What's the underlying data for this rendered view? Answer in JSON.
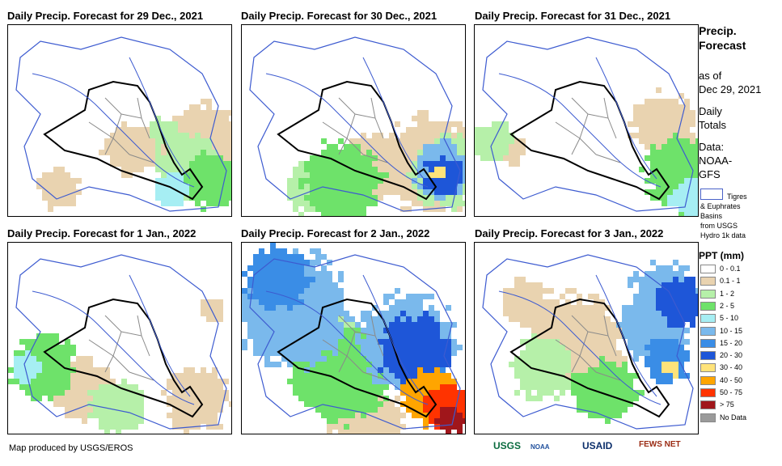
{
  "panels": [
    {
      "title": "Daily Precip. Forecast for 29 Dec., 2021"
    },
    {
      "title": "Daily Precip. Forecast for 30 Dec., 2021"
    },
    {
      "title": "Daily Precip. Forecast for 31 Dec., 2021"
    },
    {
      "title": "Daily Precip. Forecast for 1 Jan., 2022"
    },
    {
      "title": "Daily Precip. Forecast for 2 Jan., 2022"
    },
    {
      "title": "Daily Precip. Forecast for 3 Jan., 2022"
    }
  ],
  "sidebar": {
    "title_line1": "Precip.",
    "title_line2": "Forecast",
    "asof_line1": "as of",
    "asof_line2": "Dec 29, 2021",
    "totals_line1": "Daily",
    "totals_line2": "Totals",
    "data_line1": "Data:",
    "data_line2": "NOAA-",
    "data_line3": "GFS",
    "basin_line1": "Tigres",
    "basin_line2": "& Euphrates",
    "basin_line3": "Basins",
    "basin_line4": "from USGS",
    "basin_line5": "Hydro 1k data"
  },
  "legend": {
    "title": "PPT (mm)",
    "items": [
      {
        "label": "0 - 0.1",
        "color": "#ffffff"
      },
      {
        "label": "0.1 - 1",
        "color": "#e9d3b0"
      },
      {
        "label": "1 - 2",
        "color": "#b6f0a9"
      },
      {
        "label": "2 - 5",
        "color": "#6ee26a"
      },
      {
        "label": "5 - 10",
        "color": "#a6eef3"
      },
      {
        "label": "10 - 15",
        "color": "#7ab9ec"
      },
      {
        "label": "15 - 20",
        "color": "#3a8de6"
      },
      {
        "label": "20 - 30",
        "color": "#1e56d8"
      },
      {
        "label": "30 - 40",
        "color": "#ffe37a"
      },
      {
        "label": "40 - 50",
        "color": "#ffa500"
      },
      {
        "label": "50 - 75",
        "color": "#ff3300"
      },
      {
        "label": "> 75",
        "color": "#a0161b"
      },
      {
        "label": "No Data",
        "color": "#9a9a9a"
      }
    ]
  },
  "footer": {
    "credit": "Map produced by USGS/EROS",
    "logos": [
      "USGS",
      "NOAA",
      "USAID",
      "FEWS NET"
    ]
  }
}
